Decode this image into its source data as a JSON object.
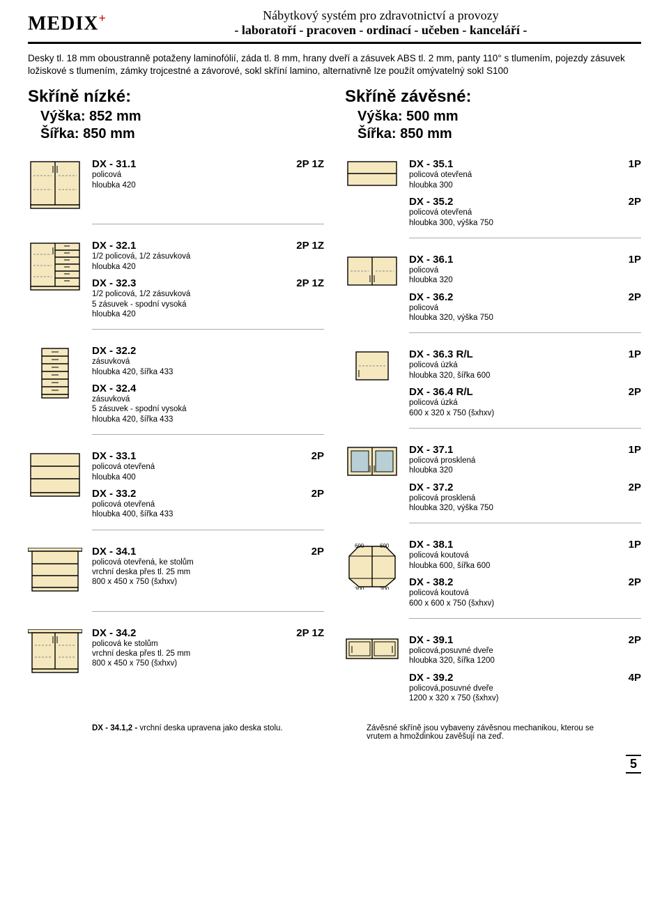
{
  "header": {
    "logo_text": "MEDIX",
    "logo_plus": "+",
    "line1": "Nábytkový systém pro zdravotnictví a provozy",
    "line2": "- laboratoří - pracoven - ordinací - učeben - kanceláří -"
  },
  "intro": "Desky tl. 18 mm oboustranně potaženy laminofólií, záda tl. 8 mm, hrany dveří a zásuvek ABS tl. 2 mm, panty 110° s tlumením, pojezdy zásuvek ložiskové s tlumením, zámky trojcestné a závorové, sokl skříní lamino, alternativně lze použít omývatelný sokl S100",
  "left": {
    "title": "Skříně nízké:",
    "height_line": "Výška:  852 mm",
    "width_line": "Šířka:   850 mm",
    "items": [
      {
        "icon": "dx31",
        "entries": [
          {
            "code": "DX - 31.1",
            "tag": "2P 1Z",
            "sub": [
              "policová",
              "hloubka 420"
            ]
          }
        ]
      },
      {
        "icon": "dx32a",
        "entries": [
          {
            "code": "DX - 32.1",
            "tag": "2P 1Z",
            "sub": [
              "1/2 policová, 1/2 zásuvková",
              "hloubka 420"
            ]
          },
          {
            "code": "DX - 32.3",
            "tag": "2P 1Z",
            "sub": [
              "1/2 policová, 1/2 zásuvková",
              "5 zásuvek - spodní vysoká",
              "hloubka 420"
            ]
          }
        ]
      },
      {
        "icon": "dx32b",
        "entries": [
          {
            "code": "DX - 32.2",
            "tag": "",
            "sub": [
              "zásuvková",
              "hloubka 420, šířka 433"
            ]
          },
          {
            "code": "DX - 32.4",
            "tag": "",
            "sub": [
              "zásuvková",
              "5 zásuvek - spodní vysoká",
              "hloubka 420, šířka 433"
            ]
          }
        ]
      },
      {
        "icon": "dx33",
        "entries": [
          {
            "code": "DX - 33.1",
            "tag": "2P",
            "sub": [
              "policová otevřená",
              "hloubka 400"
            ]
          },
          {
            "code": "DX - 33.2",
            "tag": "2P",
            "sub": [
              "policová otevřená",
              "hloubka 400, šířka 433"
            ]
          }
        ]
      },
      {
        "icon": "dx34a",
        "entries": [
          {
            "code": "DX - 34.1",
            "tag": "2P",
            "sub": [
              "policová otevřená, ke stolům",
              "vrchní deska přes tl. 25 mm",
              "800 x 450 x 750 (šxhxv)"
            ]
          }
        ]
      },
      {
        "icon": "dx34b",
        "entries": [
          {
            "code": "DX - 34.2",
            "tag": "2P 1Z",
            "sub": [
              "policová ke stolům",
              "vrchní deska přes tl. 25 mm",
              "800 x 450 x 750 (šxhxv)"
            ]
          }
        ]
      }
    ],
    "note": "DX - 34.1,2 - vrchní deska upravena jako deska stolu."
  },
  "right": {
    "title": "Skříně závěsné:",
    "height_line": "Výška:  500 mm",
    "width_line": "Šířka:   850 mm",
    "items": [
      {
        "icon": "dx35",
        "entries": [
          {
            "code": "DX - 35.1",
            "tag": "1P",
            "sub": [
              "policová otevřená",
              "hloubka 300"
            ]
          },
          {
            "code": "DX - 35.2",
            "tag": "2P",
            "sub": [
              "policová otevřená",
              "hloubka 300, výška 750"
            ]
          }
        ]
      },
      {
        "icon": "dx36",
        "entries": [
          {
            "code": "DX - 36.1",
            "tag": "1P",
            "sub": [
              "policová",
              "hloubka 320"
            ]
          },
          {
            "code": "DX - 36.2",
            "tag": "2P",
            "sub": [
              "policová",
              "hloubka 320, výška 750"
            ]
          }
        ]
      },
      {
        "icon": "dx36rl",
        "entries": [
          {
            "code": "DX - 36.3 R/L",
            "tag": "1P",
            "sub": [
              "policová úzká",
              "hloubka 320, šířka 600"
            ]
          },
          {
            "code": "DX - 36.4 R/L",
            "tag": "2P",
            "sub": [
              "policová úzká",
              "600 x 320 x 750 (šxhxv)"
            ]
          }
        ]
      },
      {
        "icon": "dx37",
        "entries": [
          {
            "code": "DX - 37.1",
            "tag": "1P",
            "sub": [
              "policová prosklená",
              "hloubka 320"
            ]
          },
          {
            "code": "DX - 37.2",
            "tag": "2P",
            "sub": [
              "policová prosklená",
              "hloubka 320, výška 750"
            ]
          }
        ]
      },
      {
        "icon": "dx38",
        "entries": [
          {
            "code": "DX - 38.1",
            "tag": "1P",
            "sub": [
              "policová koutová",
              "hloubka 600, šířka 600"
            ]
          },
          {
            "code": "DX - 38.2",
            "tag": "2P",
            "sub": [
              "policová koutová",
              "600 x 600 x 750 (šxhxv)"
            ]
          }
        ]
      },
      {
        "icon": "dx39",
        "entries": [
          {
            "code": "DX - 39.1",
            "tag": "2P",
            "sub": [
              "policová,posuvné dveře",
              "hloubka 320, šířka 1200"
            ]
          },
          {
            "code": "DX - 39.2",
            "tag": "4P",
            "sub": [
              "policová,posuvné dveře",
              "1200 x 320 x 750 (šxhxv)"
            ]
          }
        ]
      }
    ],
    "note": "Závěsné skříně jsou vybaveny závěsnou mechanikou, kterou se vrutem a hmoždinkou zavěšují na zeď."
  },
  "page_number": "5",
  "colors": {
    "fill": "#f5e8bf",
    "stroke": "#000",
    "dash": "#888",
    "glass": "#b8cfd6"
  }
}
